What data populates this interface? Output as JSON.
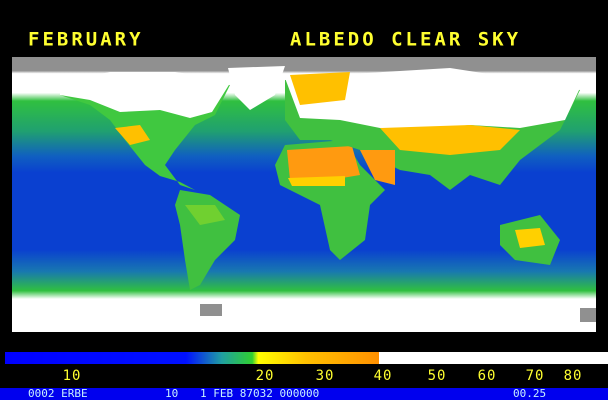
{
  "header": {
    "month": "FEBRUARY",
    "title": "ALBEDO CLEAR SKY"
  },
  "colorbar": {
    "ticks": [
      10,
      20,
      30,
      40,
      50,
      60,
      70,
      80
    ]
  },
  "footer": {
    "source": "0002 ERBE",
    "code": "10",
    "date": "1 FEB 87032 000000",
    "scale": "00.25"
  }
}
